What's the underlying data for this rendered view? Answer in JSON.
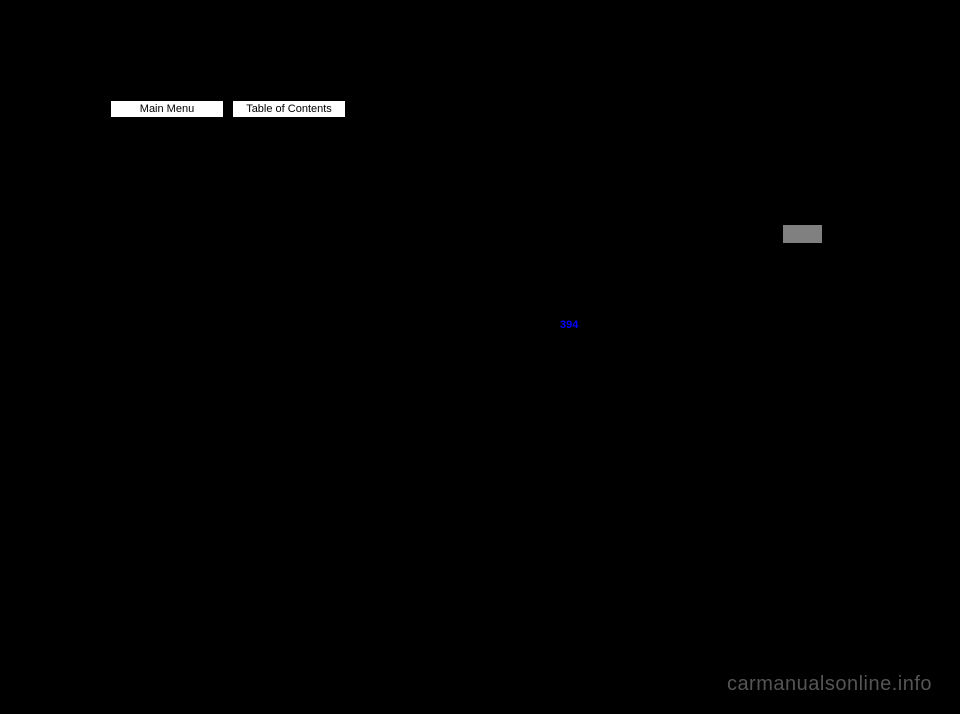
{
  "nav": {
    "main_menu_label": "Main Menu",
    "toc_label": "Table of Contents"
  },
  "page_link": {
    "text": "394"
  },
  "watermark": {
    "text": "carmanualsonline.info"
  },
  "colors": {
    "background": "#000000",
    "button_bg": "#ffffff",
    "button_border": "#000000",
    "gray_box": "#808080",
    "link_color": "#0000ff",
    "watermark_color": "#555555"
  }
}
